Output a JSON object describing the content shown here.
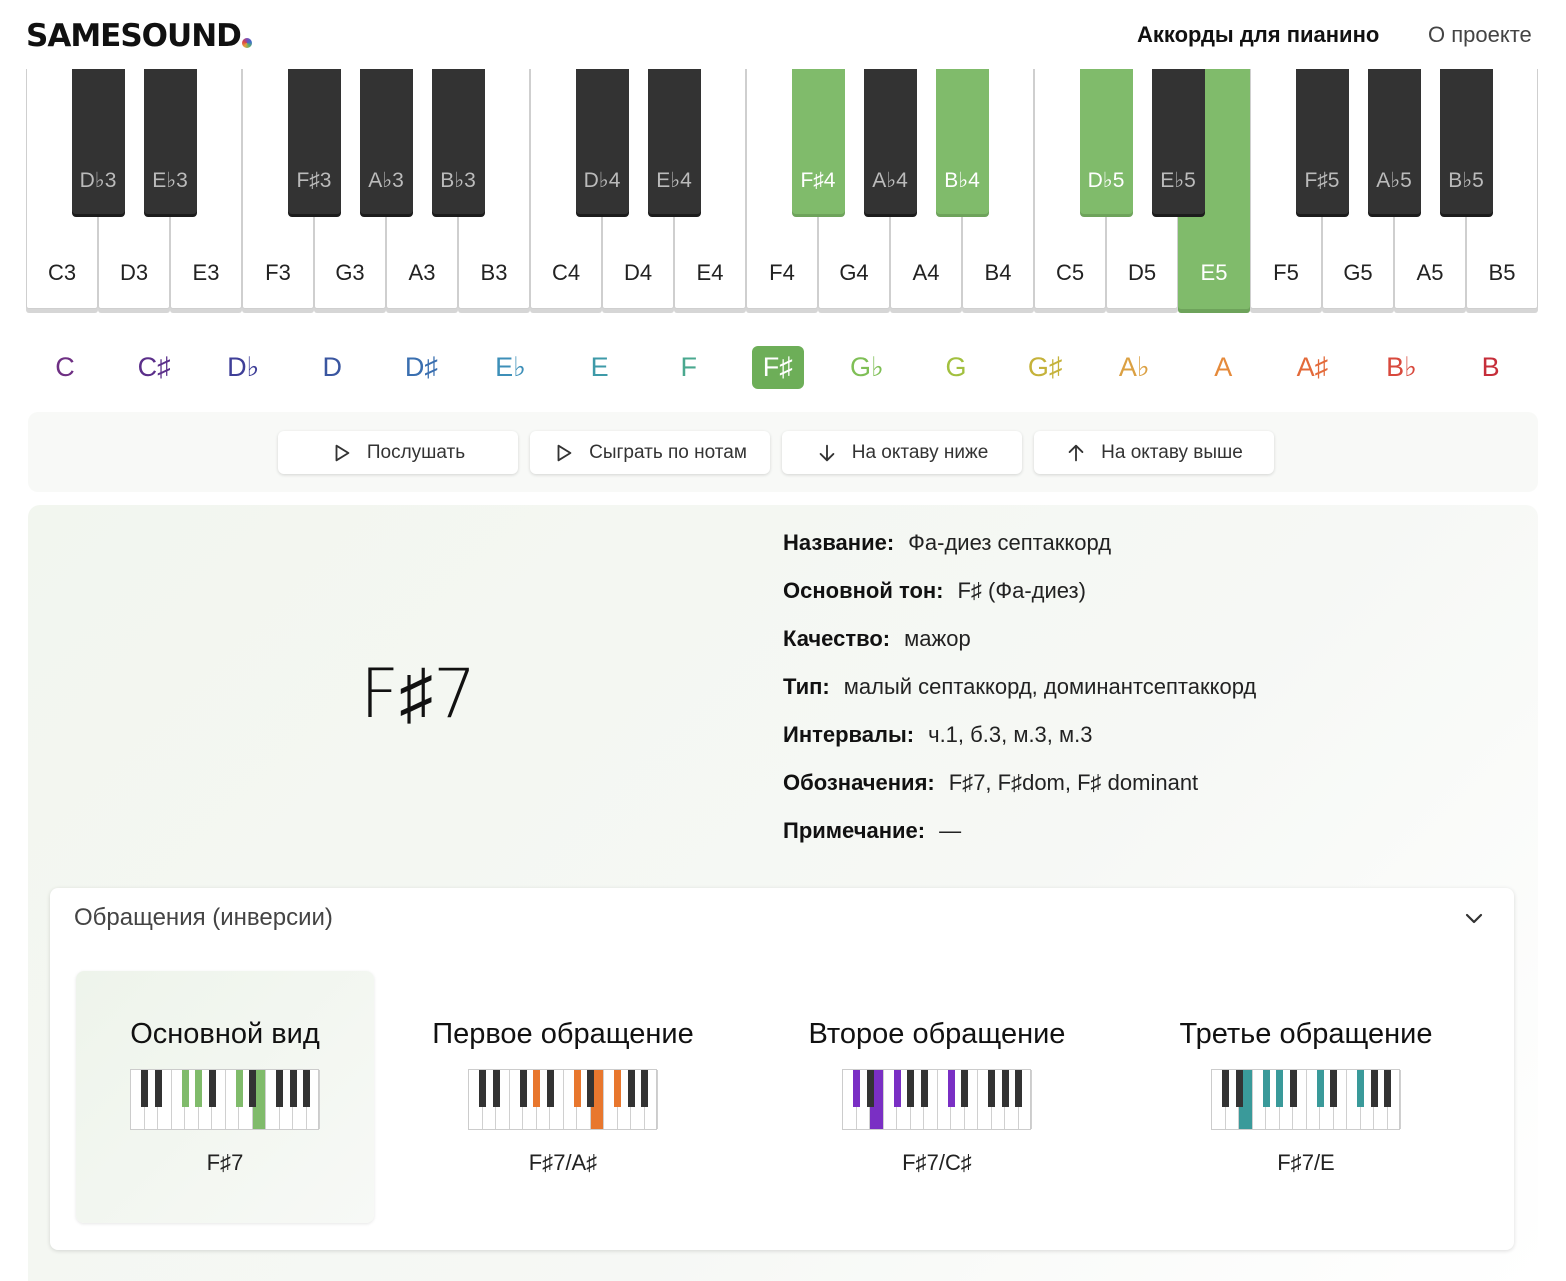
{
  "header": {
    "logo": "SAMESOUND",
    "nav": [
      {
        "label": "Аккорды для пианино"
      },
      {
        "label": "О проекте"
      }
    ]
  },
  "piano": {
    "active_color": "#80bb6b",
    "white_keys": [
      {
        "label": "C3",
        "active": false
      },
      {
        "label": "D3",
        "active": false
      },
      {
        "label": "E3",
        "active": false
      },
      {
        "label": "F3",
        "active": false
      },
      {
        "label": "G3",
        "active": false
      },
      {
        "label": "A3",
        "active": false
      },
      {
        "label": "B3",
        "active": false
      },
      {
        "label": "C4",
        "active": false
      },
      {
        "label": "D4",
        "active": false
      },
      {
        "label": "E4",
        "active": false
      },
      {
        "label": "F4",
        "active": false
      },
      {
        "label": "G4",
        "active": false
      },
      {
        "label": "A4",
        "active": false
      },
      {
        "label": "B4",
        "active": false
      },
      {
        "label": "C5",
        "active": false
      },
      {
        "label": "D5",
        "active": false
      },
      {
        "label": "E5",
        "active": true
      },
      {
        "label": "F5",
        "active": false
      },
      {
        "label": "G5",
        "active": false
      },
      {
        "label": "A5",
        "active": false
      },
      {
        "label": "B5",
        "active": false
      }
    ],
    "black_keys": [
      {
        "label": "D♭3",
        "active": false
      },
      {
        "label": "E♭3",
        "active": false
      },
      {
        "label": "F♯3",
        "active": false
      },
      {
        "label": "A♭3",
        "active": false
      },
      {
        "label": "B♭3",
        "active": false
      },
      {
        "label": "D♭4",
        "active": false
      },
      {
        "label": "E♭4",
        "active": false
      },
      {
        "label": "F♯4",
        "active": true
      },
      {
        "label": "A♭4",
        "active": false
      },
      {
        "label": "B♭4",
        "active": true
      },
      {
        "label": "D♭5",
        "active": true
      },
      {
        "label": "E♭5",
        "active": false
      },
      {
        "label": "F♯5",
        "active": false
      },
      {
        "label": "A♭5",
        "active": false
      },
      {
        "label": "B♭5",
        "active": false
      }
    ]
  },
  "notes": [
    {
      "label": "C",
      "color": "#6e2f83"
    },
    {
      "label": "C♯",
      "color": "#5b2f8a"
    },
    {
      "label": "D♭",
      "color": "#3f3f98"
    },
    {
      "label": "D",
      "color": "#3a56a0"
    },
    {
      "label": "D♯",
      "color": "#3a6fb0"
    },
    {
      "label": "E♭",
      "color": "#3d8fb8"
    },
    {
      "label": "E",
      "color": "#3e9aa8"
    },
    {
      "label": "F",
      "color": "#4aa88f"
    },
    {
      "label": "F♯",
      "color": "#ffffff",
      "selected": true
    },
    {
      "label": "G♭",
      "color": "#7fbf56"
    },
    {
      "label": "G",
      "color": "#a2c03f"
    },
    {
      "label": "G♯",
      "color": "#c5b23a"
    },
    {
      "label": "A♭",
      "color": "#dba042"
    },
    {
      "label": "A",
      "color": "#e58a3b"
    },
    {
      "label": "A♯",
      "color": "#e36a3a"
    },
    {
      "label": "B♭",
      "color": "#d8493d"
    },
    {
      "label": "B",
      "color": "#c62e3a"
    }
  ],
  "controls": [
    {
      "label": "Послушать",
      "icon": "play-icon"
    },
    {
      "label": "Сыграть по нотам",
      "icon": "play-icon"
    },
    {
      "label": "На октаву ниже",
      "icon": "arrow-down-icon"
    },
    {
      "label": "На октаву выше",
      "icon": "arrow-up-icon"
    }
  ],
  "chord": {
    "symbol": "F♯7",
    "props": [
      {
        "key": "Название:",
        "value": "Фа-диез септаккорд"
      },
      {
        "key": "Основной тон:",
        "value": "F♯ (Фа-диез)"
      },
      {
        "key": "Качество:",
        "value": "мажор"
      },
      {
        "key": "Тип:",
        "value": "малый септаккорд, доминантсептаккорд"
      },
      {
        "key": "Интервалы:",
        "value": "ч.1, б.3, м.3, м.3"
      },
      {
        "key": "Обозначения:",
        "value": "F♯7, F♯dom, F♯ dominant"
      },
      {
        "key": "Примечание:",
        "value": "—"
      }
    ]
  },
  "inversions": {
    "title": "Обращения (инверсии)",
    "items": [
      {
        "name": "Основной вид",
        "chord": "F♯7",
        "color": "#80bb6b",
        "selected": true
      },
      {
        "name": "Первое обращение",
        "chord": "F♯7/A♯",
        "color": "#e8772e",
        "selected": false
      },
      {
        "name": "Второе обращение",
        "chord": "F♯7/C♯",
        "color": "#7a2fc4",
        "selected": false
      },
      {
        "name": "Третье обращение",
        "chord": "F♯7/E",
        "color": "#3a9a9a",
        "selected": false
      }
    ]
  }
}
